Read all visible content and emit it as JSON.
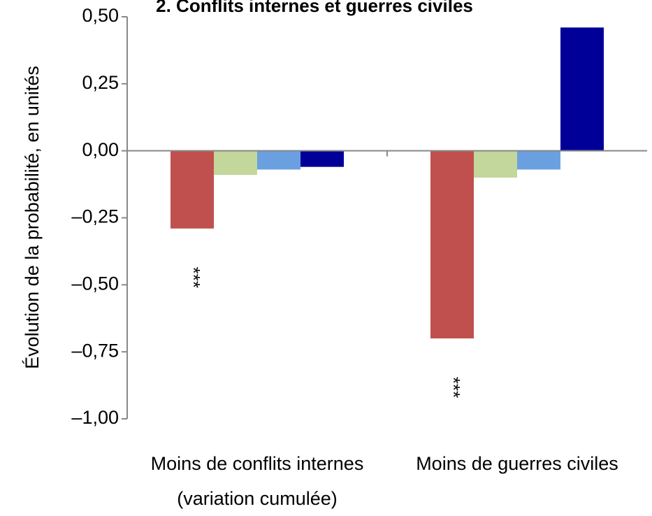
{
  "chart_data": {
    "type": "bar",
    "title": "2. Conflits internes et guerres civiles",
    "y_label": "Évolution de la probabilité,  en unités",
    "categories": [
      "Moins de conflits internes (variation cumulée)",
      "Moins de guerres civiles"
    ],
    "series": [
      {
        "color": "#c0504d",
        "values": [
          -0.29,
          -0.7
        ]
      },
      {
        "color": "#c3d69b",
        "values": [
          -0.09,
          -0.1
        ]
      },
      {
        "color": "#6aa0e0",
        "values": [
          -0.07,
          -0.07
        ]
      },
      {
        "color": "#000099",
        "values": [
          -0.06,
          0.46
        ]
      }
    ],
    "ylim": [
      -1.0,
      0.5
    ],
    "yticks": [
      {
        "value": -1.0,
        "label": "–1,00"
      },
      {
        "value": -0.75,
        "label": "–0,75"
      },
      {
        "value": -0.5,
        "label": "–0,50"
      },
      {
        "value": -0.25,
        "label": "–0,25"
      },
      {
        "value": 0,
        "label": "0,00"
      },
      {
        "value": 0.25,
        "label": "0,25"
      },
      {
        "value": 0.5,
        "label": "0,50"
      }
    ],
    "annotations": [
      {
        "text": "***",
        "series": 0,
        "category": 0
      },
      {
        "text": "***",
        "series": 0,
        "category": 1
      }
    ]
  }
}
